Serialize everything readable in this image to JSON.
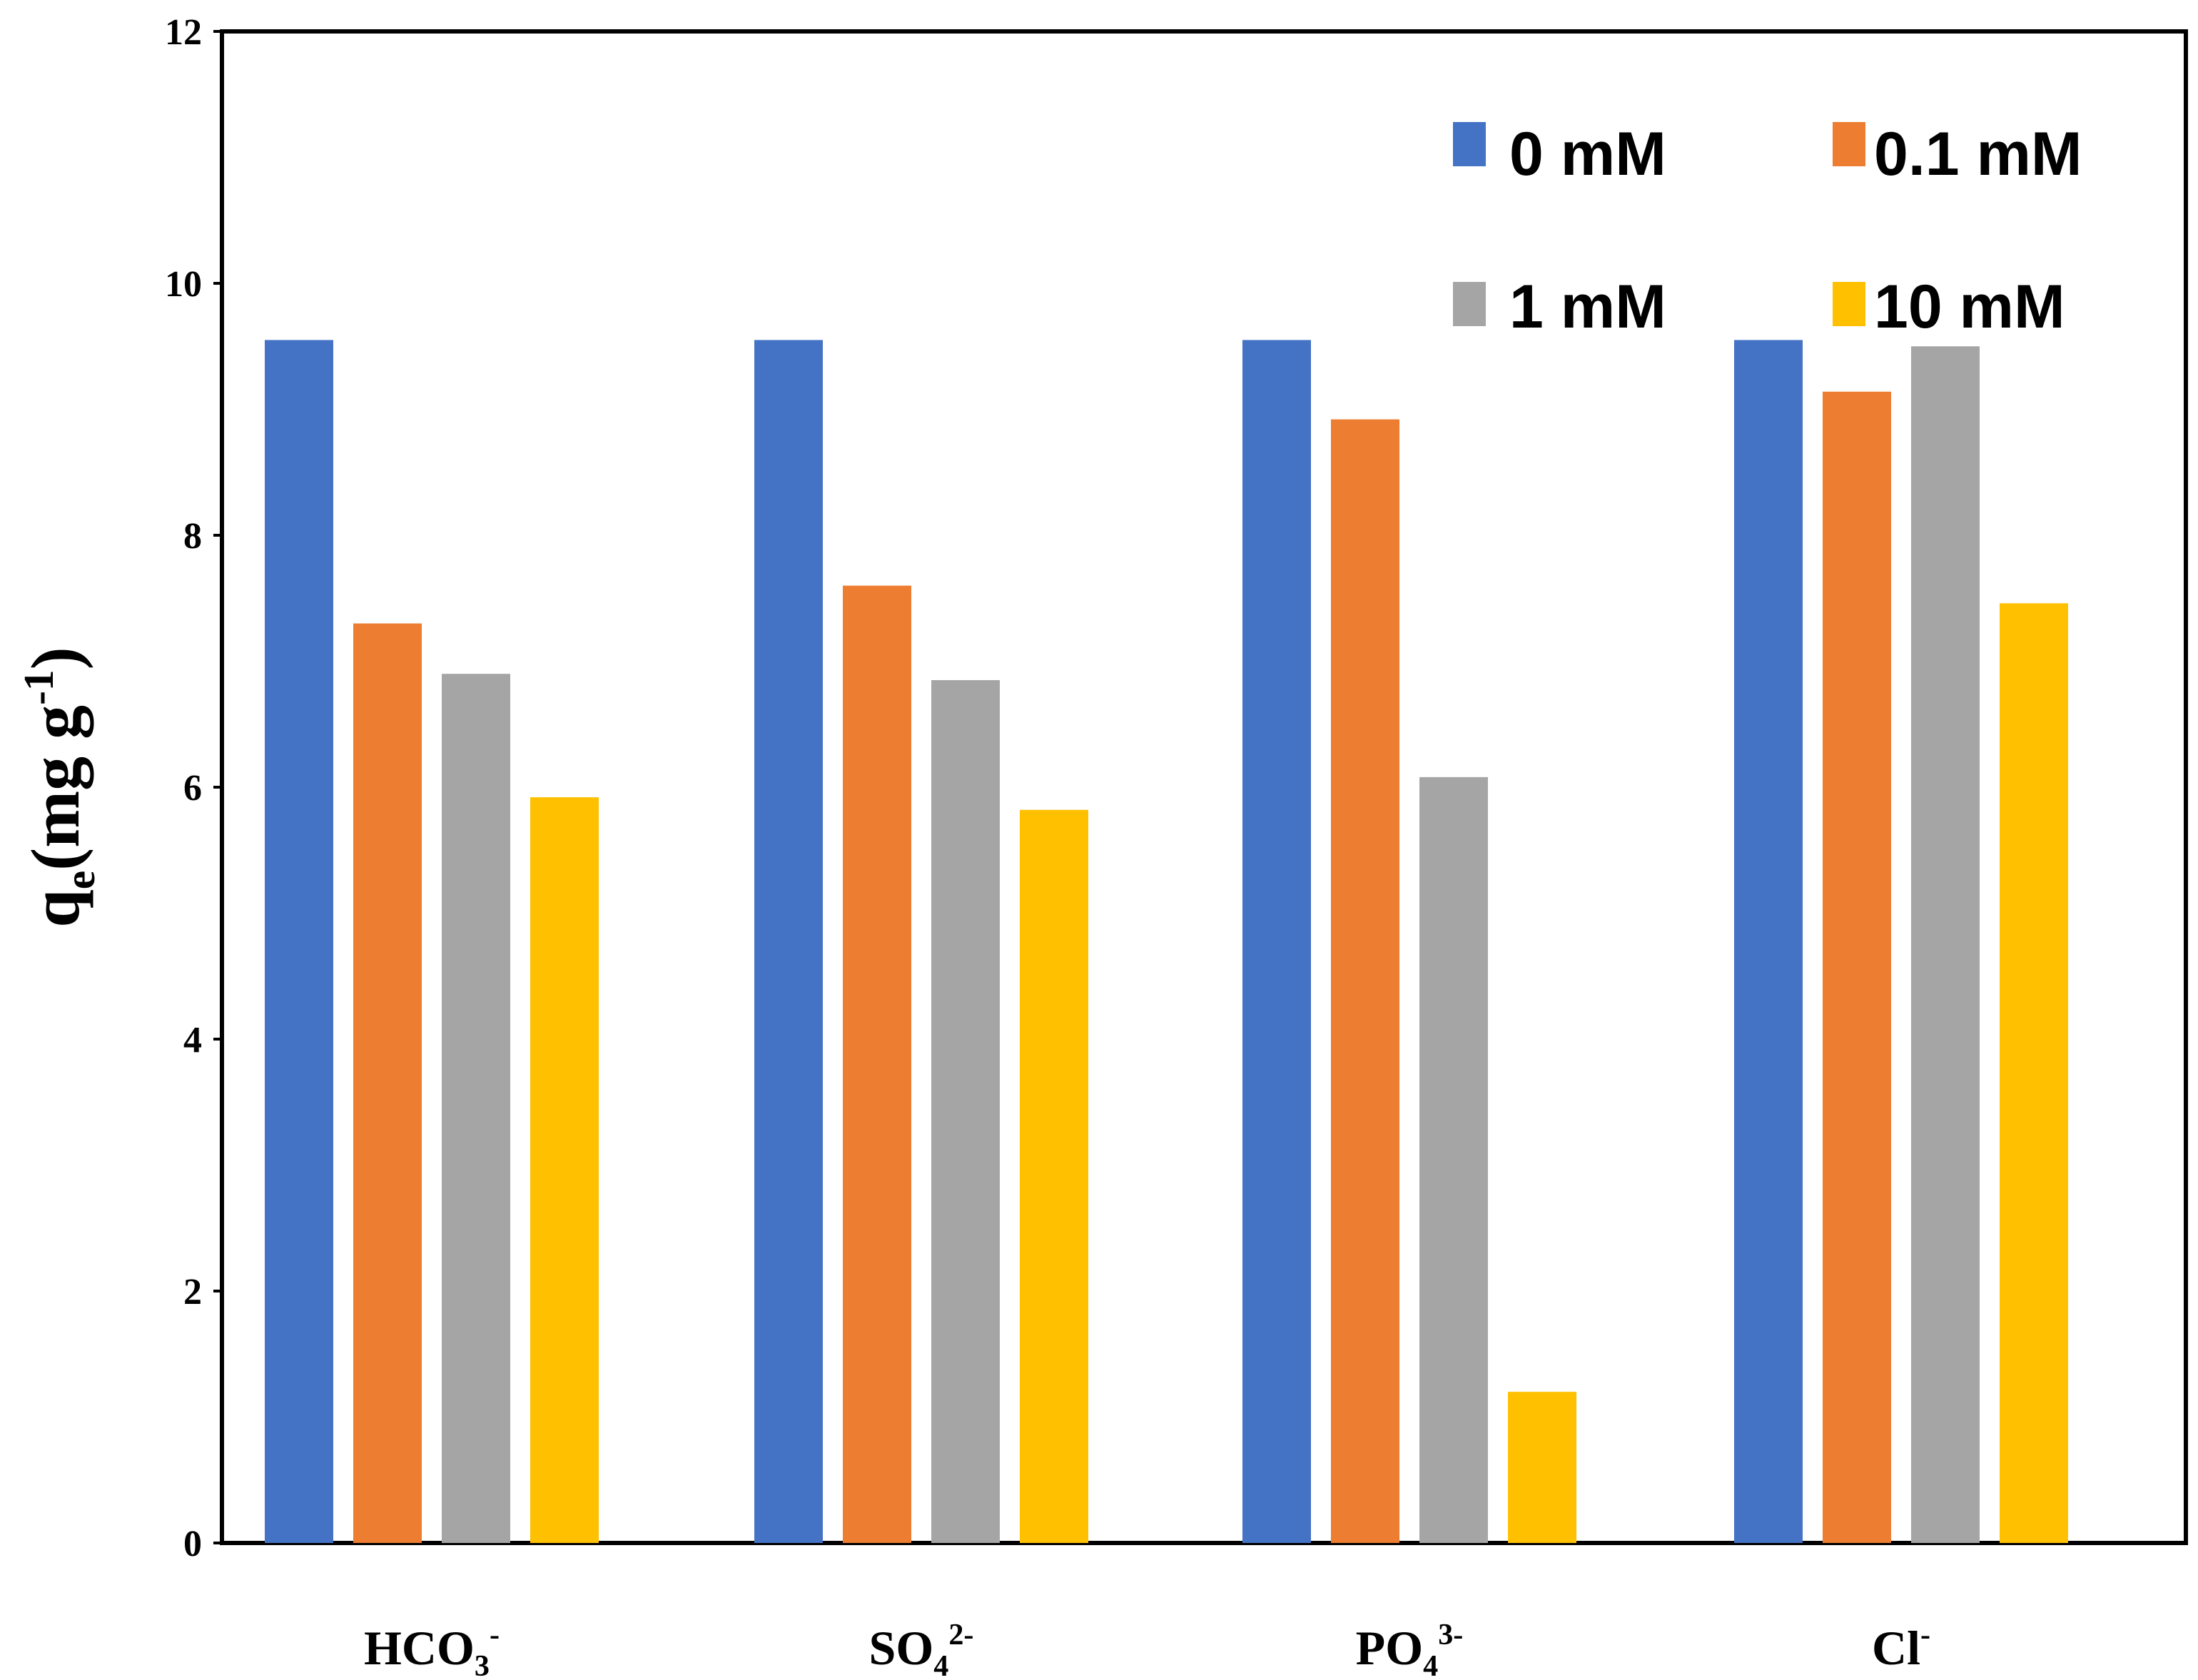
{
  "chart_data": {
    "type": "bar",
    "title": "",
    "xlabel": "",
    "ylabel": "qe(mg g-1)",
    "ylabel_parts": {
      "base": "q",
      "sub": "e",
      "mid": "(mg g",
      "sup": "-1",
      "end": ")"
    },
    "ylim": [
      0,
      12
    ],
    "yticks": [
      0,
      2,
      4,
      6,
      8,
      10,
      12
    ],
    "categories": [
      {
        "label": "HCO3-",
        "base": "HCO",
        "sub": "3",
        "sup": "-"
      },
      {
        "label": "SO42-",
        "base": "SO",
        "sub": "4",
        "sup": "2-"
      },
      {
        "label": "PO43-",
        "base": "PO",
        "sub": "4",
        "sup": "3-"
      },
      {
        "label": "Cl-",
        "base": "Cl",
        "sub": "",
        "sup": "-"
      }
    ],
    "series": [
      {
        "name": "0 mM",
        "color": "#4472C4",
        "values": [
          9.55,
          9.55,
          9.55,
          9.55
        ]
      },
      {
        "name": "0.1 mM",
        "color": "#ED7D31",
        "values": [
          7.3,
          7.6,
          8.92,
          9.14
        ]
      },
      {
        "name": "1 mM",
        "color": "#A5A5A5",
        "values": [
          6.9,
          6.85,
          6.08,
          9.5
        ]
      },
      {
        "name": "10 mM",
        "color": "#FFC000",
        "values": [
          5.92,
          5.82,
          1.2,
          7.46
        ]
      }
    ],
    "grid": false,
    "legend_position": "top-right"
  }
}
